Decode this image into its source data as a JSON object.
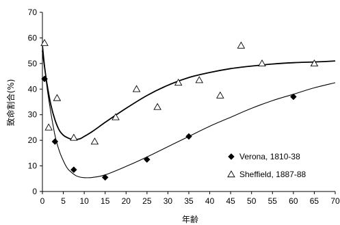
{
  "chart_data": {
    "type": "scatter",
    "xlabel": "年齢",
    "ylabel": "致命割合(%)",
    "xlim": [
      0,
      70
    ],
    "ylim": [
      0,
      70
    ],
    "xticks": [
      0,
      5,
      10,
      15,
      20,
      25,
      30,
      35,
      40,
      45,
      50,
      55,
      60,
      65,
      70
    ],
    "yticks": [
      0,
      10,
      20,
      30,
      40,
      50,
      60,
      70
    ],
    "grid": false,
    "legend_position": "bottom-right",
    "series": [
      {
        "name": "Verona, 1810-38",
        "marker": "filled-diamond",
        "color": "#000000",
        "points": [
          [
            0.5,
            44
          ],
          [
            3,
            19.5
          ],
          [
            7.5,
            8.5
          ],
          [
            15,
            5.5
          ],
          [
            25,
            12.5
          ],
          [
            35,
            21.5
          ],
          [
            60,
            37
          ]
        ],
        "fit_curve": [
          [
            0,
            58
          ],
          [
            1,
            42
          ],
          [
            2,
            31
          ],
          [
            3,
            22
          ],
          [
            4,
            16
          ],
          [
            5,
            12
          ],
          [
            6,
            9
          ],
          [
            7,
            7.4
          ],
          [
            8,
            6.2
          ],
          [
            9,
            5.6
          ],
          [
            10,
            5.4
          ],
          [
            12,
            5.5
          ],
          [
            15,
            6.5
          ],
          [
            20,
            9.8
          ],
          [
            25,
            13.5
          ],
          [
            30,
            17.5
          ],
          [
            35,
            21.5
          ],
          [
            40,
            25.5
          ],
          [
            45,
            29
          ],
          [
            50,
            32.5
          ],
          [
            55,
            35.5
          ],
          [
            60,
            38
          ],
          [
            65,
            40.5
          ],
          [
            70,
            42.5
          ]
        ]
      },
      {
        "name": "Sheffield, 1887-88",
        "marker": "open-triangle",
        "color": "#000000",
        "points": [
          [
            0.5,
            58
          ],
          [
            1.5,
            25
          ],
          [
            3.5,
            36.5
          ],
          [
            7.5,
            21
          ],
          [
            12.5,
            19.5
          ],
          [
            17.5,
            29
          ],
          [
            22.5,
            40
          ],
          [
            27.5,
            33
          ],
          [
            32.5,
            42.5
          ],
          [
            37.5,
            43.5
          ],
          [
            42.5,
            37.5
          ],
          [
            47.5,
            57
          ],
          [
            52.5,
            50
          ],
          [
            65,
            50
          ]
        ],
        "fit_curve": [
          [
            0,
            55
          ],
          [
            1,
            43
          ],
          [
            2,
            34
          ],
          [
            3,
            28
          ],
          [
            4,
            24
          ],
          [
            5,
            22
          ],
          [
            6,
            21
          ],
          [
            7,
            20.4
          ],
          [
            8,
            20.3
          ],
          [
            9,
            20.6
          ],
          [
            10,
            21.5
          ],
          [
            12,
            23.5
          ],
          [
            15,
            27
          ],
          [
            20,
            32.5
          ],
          [
            25,
            37.5
          ],
          [
            30,
            41.5
          ],
          [
            35,
            44.5
          ],
          [
            40,
            46.5
          ],
          [
            45,
            48
          ],
          [
            50,
            49
          ],
          [
            55,
            49.8
          ],
          [
            60,
            50.3
          ],
          [
            65,
            50.6
          ],
          [
            70,
            51
          ]
        ]
      }
    ]
  }
}
